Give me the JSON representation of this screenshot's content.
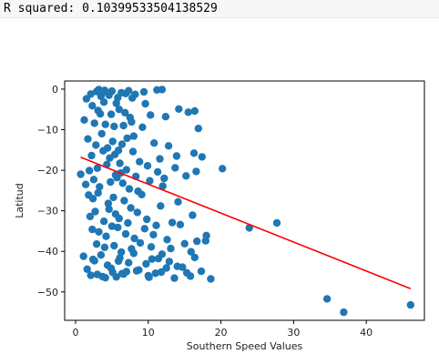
{
  "output": {
    "stdout_text": "R squared: 0.10399533504138529"
  },
  "chart_data": {
    "type": "scatter",
    "xlabel": "Southern Speed Values",
    "ylabel": "Latitud",
    "xlim": [
      -1.5,
      48
    ],
    "ylim": [
      -57,
      2
    ],
    "xticks": [
      0,
      10,
      20,
      30,
      40
    ],
    "yticks": [
      0,
      -10,
      -20,
      -30,
      -40,
      -50
    ],
    "grid": false,
    "colors": {
      "points": "#1f77b4",
      "regression_line": "#ff0000",
      "axes": "#000000"
    },
    "series": [
      {
        "kind": "points",
        "x": [
          2.1,
          2.9,
          3.2,
          3.5,
          3.7,
          4.0,
          4.6,
          5.0,
          5.8,
          6.3,
          6.9,
          7.3,
          7.8,
          8.2,
          9.4,
          11.2,
          11.9,
          3.1,
          3.9,
          1.5,
          2.3,
          4.9,
          5.6,
          6.8,
          7.5,
          9.6,
          10.3,
          14.2,
          15.5,
          16.4,
          1.2,
          2.6,
          3.4,
          4.1,
          5.3,
          6.0,
          6.6,
          7.7,
          9.2,
          12.4,
          16.9,
          1.7,
          2.8,
          3.6,
          4.4,
          5.1,
          5.9,
          6.4,
          7.1,
          8.0,
          10.8,
          12.8,
          16.3,
          2.2,
          3.8,
          4.7,
          5.4,
          6.1,
          7.9,
          8.8,
          11.6,
          13.9,
          17.4,
          1.9,
          3.0,
          4.3,
          5.5,
          6.2,
          7.0,
          8.3,
          9.9,
          11.3,
          12.2,
          13.7,
          1.4,
          2.5,
          3.3,
          4.8,
          5.7,
          6.5,
          7.4,
          8.6,
          10.2,
          12.0,
          15.2,
          0.7,
          1.8,
          2.4,
          3.1,
          4.5,
          5.2,
          6.7,
          7.6,
          9.1,
          11.7,
          14.1,
          16.6,
          20.2,
          2.0,
          2.7,
          3.9,
          4.6,
          5.5,
          6.0,
          7.2,
          8.5,
          9.8,
          11.1,
          13.3,
          16.1,
          2.3,
          3.2,
          4.2,
          5.0,
          5.8,
          6.9,
          8.1,
          9.5,
          10.7,
          12.6,
          14.4,
          16.7,
          18.0,
          2.9,
          4.0,
          5.3,
          6.3,
          7.7,
          8.9,
          10.4,
          11.9,
          13.1,
          15.0,
          17.9,
          1.1,
          2.6,
          3.5,
          4.4,
          6.1,
          7.3,
          8.0,
          9.7,
          11.4,
          12.9,
          14.7,
          15.9,
          1.6,
          3.0,
          4.9,
          5.6,
          7.0,
          8.4,
          10.0,
          11.0,
          12.5,
          13.6,
          15.3,
          2.1,
          3.7,
          5.9,
          6.6,
          8.7,
          10.5,
          11.8,
          14.0,
          15.8,
          17.3,
          2.4,
          4.1,
          5.1,
          6.4,
          10.1,
          16.4,
          18.6,
          23.9,
          27.7,
          34.6,
          36.9,
          46.1
        ],
        "y": [
          -1.2,
          -0.6,
          -0.1,
          -1.8,
          -0.8,
          -0.3,
          -1.5,
          -0.5,
          -2.1,
          -0.9,
          -1.1,
          -0.4,
          -2.2,
          -1.3,
          -0.7,
          -0.2,
          -0.1,
          -5.3,
          -3.2,
          -2.4,
          -4.1,
          -6.2,
          -3.5,
          -5.8,
          -7.0,
          -3.6,
          -6.4,
          -4.9,
          -5.7,
          -5.4,
          -7.6,
          -8.4,
          -6.1,
          -8.7,
          -9.2,
          -5.0,
          -9.0,
          -8.1,
          -9.4,
          -6.8,
          -9.7,
          -12.3,
          -13.8,
          -11.0,
          -14.5,
          -12.9,
          -15.1,
          -13.6,
          -12.1,
          -11.6,
          -13.3,
          -14.0,
          -15.8,
          -16.4,
          -15.2,
          -17.0,
          -16.1,
          -18.3,
          -15.4,
          -17.9,
          -17.2,
          -16.5,
          -16.7,
          -20.1,
          -19.5,
          -18.6,
          -21.2,
          -20.7,
          -19.9,
          -21.5,
          -18.9,
          -20.4,
          -22.0,
          -19.4,
          -23.5,
          -22.3,
          -24.1,
          -22.9,
          -21.8,
          -23.2,
          -24.6,
          -25.2,
          -22.6,
          -23.9,
          -21.4,
          -21.0,
          -26.1,
          -27.0,
          -25.6,
          -28.2,
          -26.7,
          -27.5,
          -29.3,
          -26.0,
          -28.8,
          -27.8,
          -20.3,
          -19.6,
          -31.4,
          -30.2,
          -32.6,
          -29.6,
          -30.8,
          -31.9,
          -33.0,
          -30.4,
          -32.1,
          -33.6,
          -32.9,
          -31.1,
          -34.6,
          -35.2,
          -36.3,
          -33.8,
          -34.1,
          -35.7,
          -36.8,
          -34.4,
          -35.9,
          -37.1,
          -33.4,
          -37.5,
          -36.1,
          -38.2,
          -39.0,
          -38.6,
          -40.2,
          -39.4,
          -37.9,
          -38.9,
          -40.7,
          -39.3,
          -38.1,
          -37.4,
          -41.2,
          -42.3,
          -40.9,
          -43.4,
          -41.6,
          -42.8,
          -40.5,
          -43.1,
          -41.8,
          -42.5,
          -43.9,
          -40.1,
          -44.4,
          -45.7,
          -44.2,
          -46.3,
          -45.0,
          -44.8,
          -46.0,
          -45.4,
          -44.1,
          -46.6,
          -45.3,
          -45.9,
          -46.2,
          -42.4,
          -45.6,
          -44.6,
          -41.9,
          -45.1,
          -43.7,
          -46.1,
          -44.9,
          -42.0,
          -46.5,
          -45.2,
          -45.5,
          -46.4,
          -41.5,
          -46.8,
          -34.2,
          -33.0,
          -51.7,
          -55.0,
          -53.2
        ]
      },
      {
        "kind": "regression_line",
        "x": [
          0.7,
          46.1
        ],
        "y": [
          -16.8,
          -49.2
        ]
      }
    ]
  }
}
